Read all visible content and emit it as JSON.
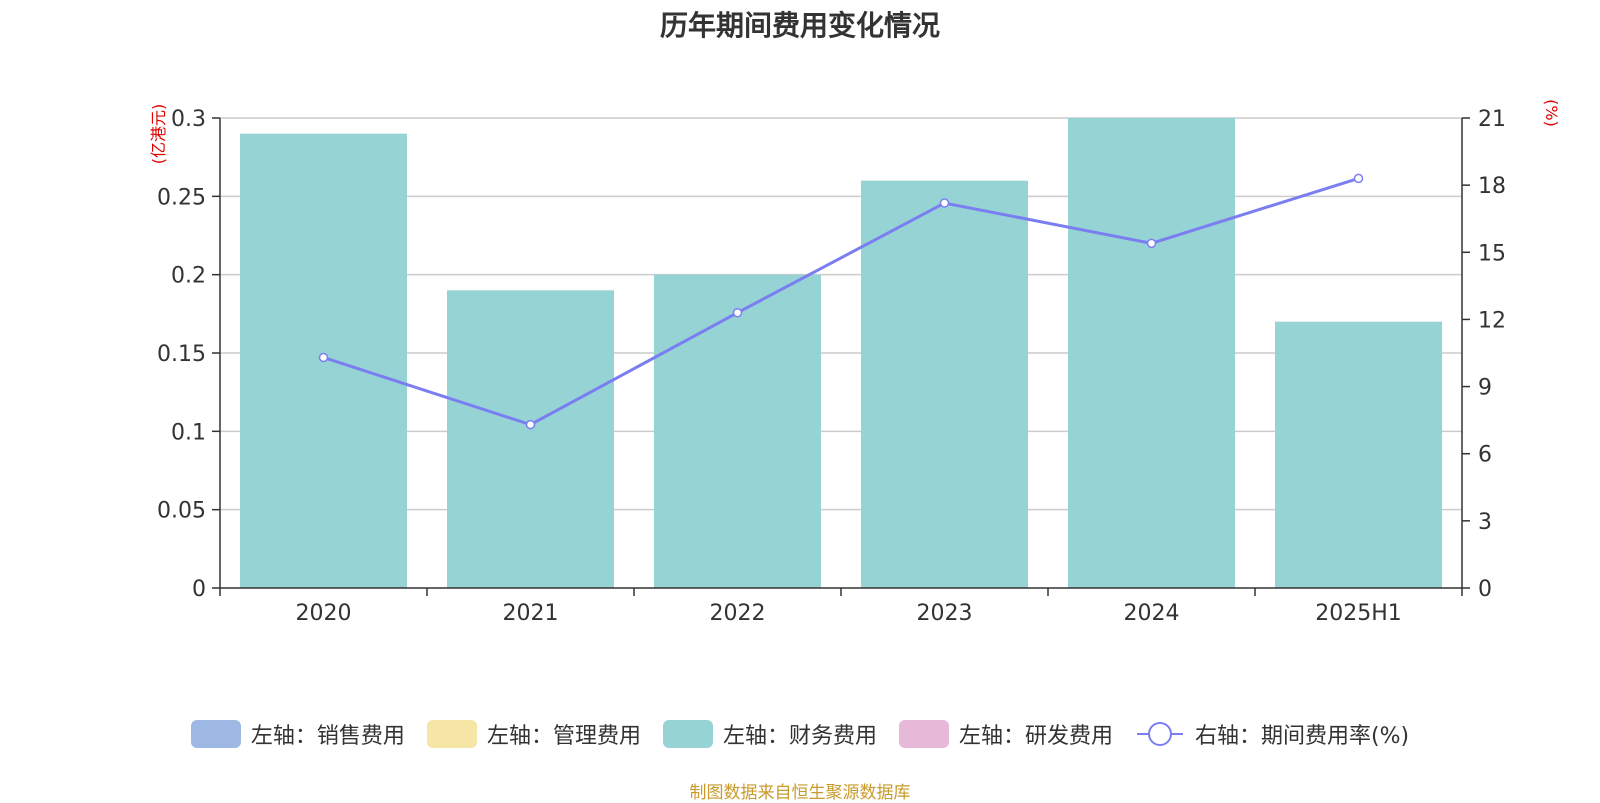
{
  "chart_data": {
    "type": "bar",
    "title": "历年期间费用变化情况",
    "categories": [
      "2020",
      "2021",
      "2022",
      "2023",
      "2024",
      "2025H1"
    ],
    "series": [
      {
        "name": "左轴：销售费用",
        "axis": "left",
        "kind": "bar",
        "color": "#9db8e3",
        "values": [
          0,
          0,
          0,
          0,
          0,
          0
        ]
      },
      {
        "name": "左轴：管理费用",
        "axis": "left",
        "kind": "bar",
        "color": "#f5e6a6",
        "values": [
          0,
          0,
          0,
          0,
          0,
          0
        ]
      },
      {
        "name": "左轴：财务费用",
        "axis": "left",
        "kind": "bar",
        "color": "#96d3d5",
        "values": [
          0.29,
          0.19,
          0.2,
          0.26,
          0.3,
          0.17
        ]
      },
      {
        "name": "左轴：研发费用",
        "axis": "left",
        "kind": "bar",
        "color": "#e8b8d8",
        "values": [
          0,
          0,
          0,
          0,
          0,
          0
        ]
      },
      {
        "name": "右轴：期间费用率(%)",
        "axis": "right",
        "kind": "line",
        "color": "#7b7ef0",
        "values": [
          10.3,
          7.3,
          12.3,
          17.2,
          15.4,
          18.3
        ]
      }
    ],
    "left_axis": {
      "label": "(亿港元)",
      "ylim": [
        0,
        0.3
      ],
      "ticks": [
        "0",
        "0.05",
        "0.1",
        "0.15",
        "0.2",
        "0.25",
        "0.3"
      ]
    },
    "right_axis": {
      "label": "(%)",
      "ylim": [
        0,
        21
      ],
      "ticks": [
        "0",
        "3",
        "6",
        "9",
        "12",
        "15",
        "18",
        "21"
      ]
    },
    "grid": true,
    "legend_position": "bottom"
  },
  "source_note": "制图数据来自恒生聚源数据库"
}
